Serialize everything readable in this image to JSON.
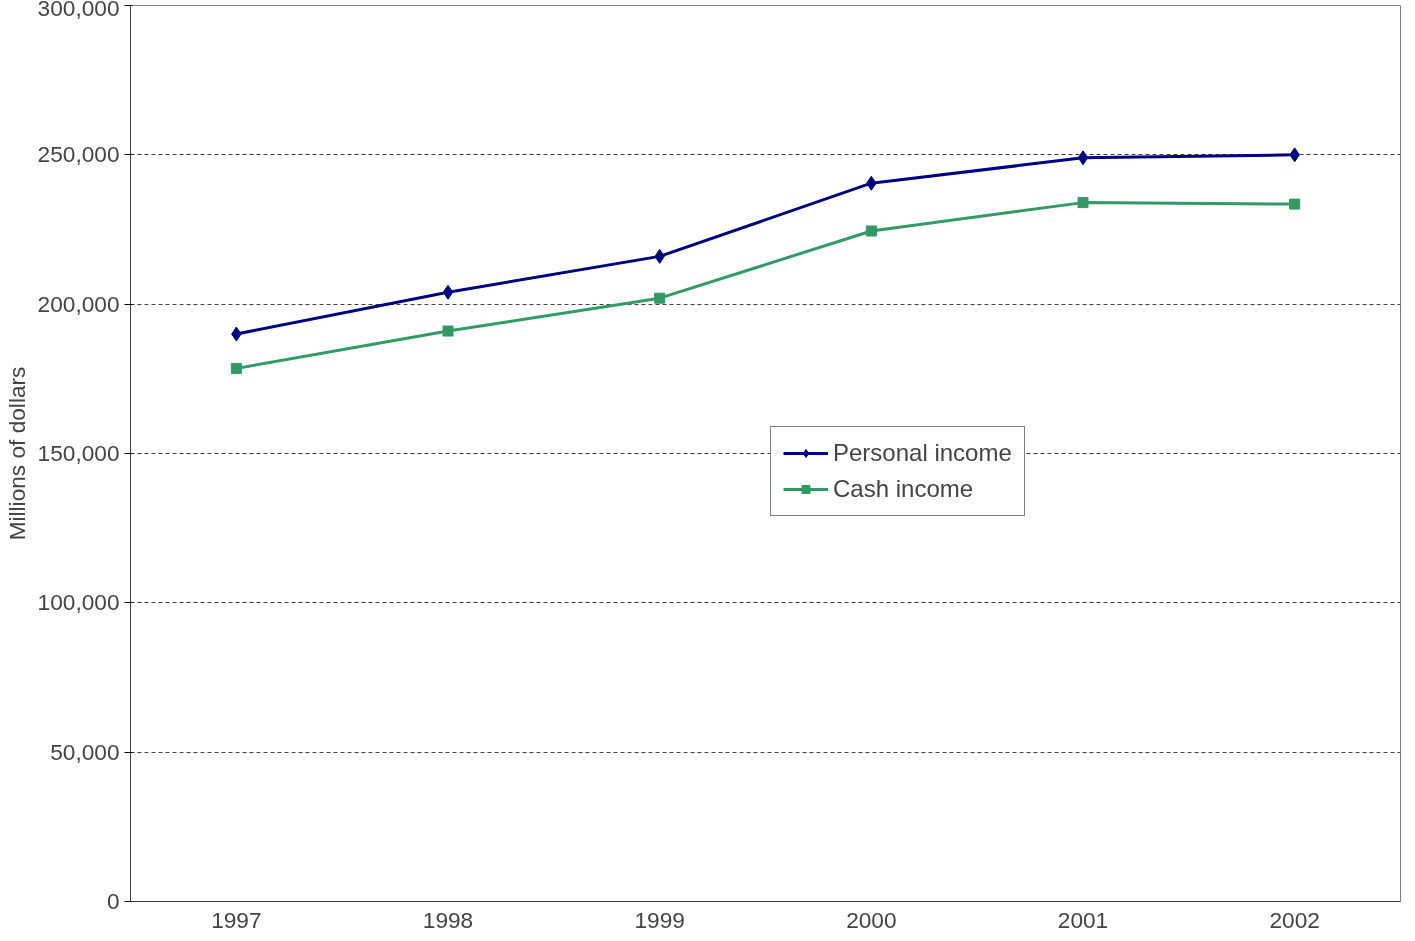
{
  "chart_data": {
    "type": "line",
    "ylabel": "Millions of dollars",
    "categories": [
      "1997",
      "1998",
      "1999",
      "2000",
      "2001",
      "2002"
    ],
    "series": [
      {
        "name": "Personal income",
        "color": "#000080",
        "marker": "diamond",
        "values": [
          190000,
          204000,
          216000,
          240500,
          249000,
          250000
        ]
      },
      {
        "name": "Cash income",
        "color": "#339966",
        "marker": "square",
        "values": [
          178500,
          191000,
          202000,
          224500,
          234000,
          233500
        ]
      }
    ],
    "ylim": [
      0,
      300000
    ],
    "yticks": [
      {
        "value": 0,
        "label": "0"
      },
      {
        "value": 50000,
        "label": "50,000"
      },
      {
        "value": 100000,
        "label": "100,000"
      },
      {
        "value": 150000,
        "label": "150,000"
      },
      {
        "value": 200000,
        "label": "200,000"
      },
      {
        "value": 250000,
        "label": "250,000"
      },
      {
        "value": 300000,
        "label": "300,000"
      }
    ],
    "grid": "y",
    "legend": "center",
    "line_style": "solid"
  }
}
